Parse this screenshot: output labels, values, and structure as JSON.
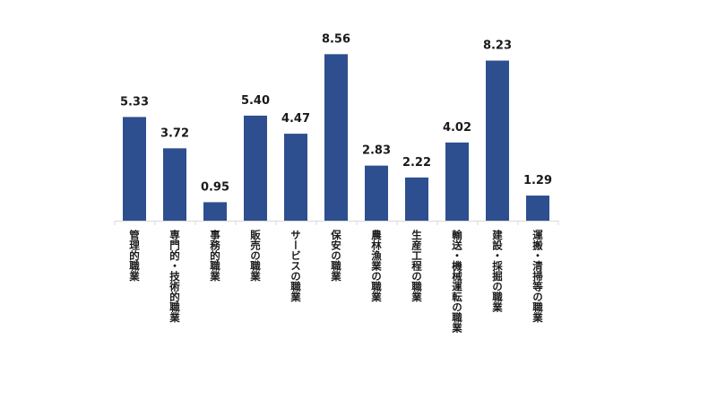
{
  "chart_data": {
    "type": "bar",
    "title": "",
    "xlabel": "",
    "ylabel": "",
    "ylim": [
      0,
      9.5
    ],
    "grid": false,
    "legend": "none",
    "bar_color": "#2e4f8f",
    "categories": [
      "管理的職業",
      "専門的・技術的職業",
      "事務的職業",
      "販売の職業",
      "サービスの職業",
      "保安の職業",
      "農林漁業の職業",
      "生産工程の職業",
      "輸送・機械運転の職業",
      "建設・採掘の職業",
      "運搬・清掃等の職業"
    ],
    "values": [
      5.33,
      3.72,
      0.95,
      5.4,
      4.47,
      8.56,
      2.83,
      2.22,
      4.02,
      8.23,
      1.29
    ],
    "value_labels": [
      "5.33",
      "3.72",
      "0.95",
      "5.40",
      "4.47",
      "8.56",
      "2.83",
      "2.22",
      "4.02",
      "8.23",
      "1.29"
    ]
  }
}
